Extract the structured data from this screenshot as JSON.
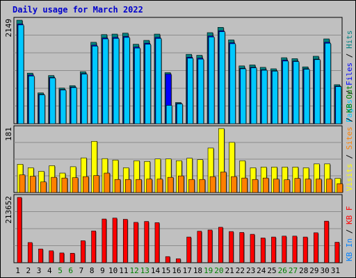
{
  "title": "Daily usage for March 2022",
  "colors": {
    "background": "#c0c0c0",
    "pages": "#00c8ff",
    "files": "#0000ff",
    "hits": "#008080",
    "visits": "#ffff00",
    "sites": "#ff8000",
    "kbin": "#0080ff",
    "kbout": "#008000",
    "kbf": "#ff0000",
    "weekend_day": "#008000",
    "title": "#0000cc"
  },
  "chart_data": [
    {
      "type": "bar",
      "panel": "hits",
      "ymax_label": "2149",
      "ymax": 2149,
      "legend": [
        {
          "label": "Pages",
          "color": "#00c8ff"
        },
        {
          "label": "Files",
          "color": "#0000ff"
        },
        {
          "label": "Hits",
          "color": "#008080"
        }
      ],
      "categories": [
        "1",
        "2",
        "3",
        "4",
        "5",
        "6",
        "7",
        "8",
        "9",
        "10",
        "11",
        "12",
        "13",
        "14",
        "15",
        "16",
        "17",
        "18",
        "19",
        "20",
        "21",
        "22",
        "23",
        "24",
        "25",
        "26",
        "27",
        "28",
        "29",
        "30",
        "31"
      ],
      "weekend_days": [
        "5",
        "6",
        "12",
        "13",
        "19",
        "20",
        "26",
        "27"
      ],
      "series": [
        {
          "name": "Hits",
          "values": [
            2149,
            1050,
            640,
            1000,
            740,
            790,
            1080,
            1690,
            1850,
            1860,
            1880,
            1650,
            1730,
            1860,
            1060,
            440,
            1440,
            1420,
            1890,
            2000,
            1740,
            1200,
            1220,
            1170,
            1140,
            1370,
            1350,
            1180,
            1400,
            1760,
            810
          ]
        },
        {
          "name": "Files",
          "values": [
            2070,
            1010,
            610,
            960,
            710,
            760,
            1040,
            1630,
            1780,
            1790,
            1810,
            1590,
            1670,
            1790,
            1030,
            420,
            1380,
            1360,
            1820,
            1930,
            1680,
            1150,
            1170,
            1120,
            1100,
            1320,
            1300,
            1140,
            1340,
            1690,
            780
          ]
        },
        {
          "name": "Pages",
          "values": [
            2050,
            990,
            600,
            950,
            700,
            750,
            1030,
            1610,
            1760,
            1770,
            1790,
            1570,
            1650,
            1770,
            380,
            410,
            1360,
            1340,
            1800,
            1910,
            1660,
            1140,
            1160,
            1110,
            1090,
            1300,
            1290,
            1130,
            1330,
            1670,
            770
          ]
        }
      ]
    },
    {
      "type": "bar",
      "panel": "visits",
      "ymax_label": "181",
      "ymax": 181,
      "legend": [
        {
          "label": "Visits",
          "color": "#ffff00"
        },
        {
          "label": "Sites",
          "color": "#ff8000"
        },
        {
          "label": "KB Out",
          "color": "#008000"
        }
      ],
      "series": [
        {
          "name": "Visits",
          "values": [
            80,
            70,
            60,
            76,
            55,
            73,
            98,
            145,
            96,
            92,
            70,
            90,
            88,
            95,
            95,
            90,
            97,
            93,
            126,
            181,
            142,
            90,
            70,
            72,
            72,
            72,
            72,
            70,
            81,
            81,
            40
          ]
        },
        {
          "name": "Sites",
          "values": [
            50,
            46,
            30,
            43,
            41,
            42,
            45,
            48,
            55,
            37,
            37,
            37,
            38,
            38,
            43,
            47,
            37,
            37,
            45,
            58,
            45,
            41,
            37,
            41,
            38,
            36,
            40,
            38,
            38,
            38,
            25
          ]
        }
      ]
    },
    {
      "type": "bar",
      "panel": "kbytes",
      "ymax_label": "213652",
      "ymax": 213652,
      "legend": [
        {
          "label": "KB In",
          "color": "#0080ff"
        },
        {
          "label": "KB F",
          "color": "#ff0000"
        }
      ],
      "series": [
        {
          "name": "KB F",
          "values": [
            213652,
            66000,
            45000,
            39000,
            32000,
            31000,
            72000,
            104000,
            143000,
            146000,
            142000,
            132000,
            135000,
            131000,
            20000,
            13000,
            84000,
            103000,
            107000,
            116000,
            102000,
            99000,
            93000,
            81000,
            84000,
            87000,
            87000,
            84000,
            98000,
            136000,
            67000
          ]
        }
      ]
    }
  ]
}
